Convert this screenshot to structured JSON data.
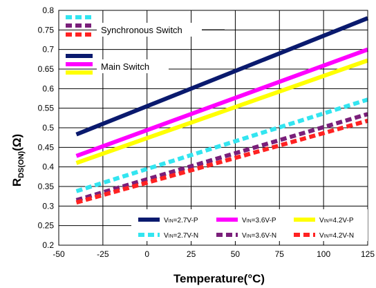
{
  "chart_data": {
    "type": "line",
    "xlabel": "Temperature(°C)",
    "ylabel_main": "R",
    "ylabel_sub": "DS(ON)",
    "ylabel_unit": "(Ω)",
    "xlim": [
      -50,
      125
    ],
    "ylim": [
      0.2,
      0.8
    ],
    "xticks": [
      "-50",
      "-25",
      "0",
      "25",
      "50",
      "75",
      "100",
      "125"
    ],
    "yticks": [
      "0.2",
      "0.25",
      "0.3",
      "0.35",
      "0.4",
      "0.45",
      "0.5",
      "0.55",
      "0.6",
      "0.65",
      "0.7",
      "0.75",
      "0.8"
    ],
    "grid": true,
    "series": [
      {
        "name": "VIN=2.7V-P",
        "label_main": "V",
        "label_sub": "IN",
        "label_rest": "=2.7V-P",
        "color": "#0a1a6e",
        "dashed": false,
        "x": [
          -40,
          125
        ],
        "y": [
          0.483,
          0.78
        ]
      },
      {
        "name": "VIN=3.6V-P",
        "label_main": "V",
        "label_sub": "IN",
        "label_rest": "=3.6V-P",
        "color": "#ff00ff",
        "dashed": false,
        "x": [
          -40,
          125
        ],
        "y": [
          0.428,
          0.7
        ]
      },
      {
        "name": "VIN=4.2V-P",
        "label_main": "V",
        "label_sub": "IN",
        "label_rest": "=4.2V-P",
        "color": "#ffff00",
        "dashed": false,
        "x": [
          -40,
          125
        ],
        "y": [
          0.41,
          0.672
        ]
      },
      {
        "name": "VIN=2.7V-N",
        "label_main": "V",
        "label_sub": "IN",
        "label_rest": "=2.7V-N",
        "color": "#33e5f0",
        "dashed": true,
        "x": [
          -40,
          125
        ],
        "y": [
          0.338,
          0.572
        ]
      },
      {
        "name": "VIN=3.6V-N",
        "label_main": "V",
        "label_sub": "IN",
        "label_rest": "=3.6V-N",
        "color": "#7a1f7a",
        "dashed": true,
        "x": [
          -40,
          125
        ],
        "y": [
          0.315,
          0.535
        ]
      },
      {
        "name": "VIN=4.2V-N",
        "label_main": "V",
        "label_sub": "IN",
        "label_rest": "=4.2V-N",
        "color": "#ff2222",
        "dashed": true,
        "x": [
          -40,
          125
        ],
        "y": [
          0.309,
          0.518
        ]
      }
    ],
    "group_labels": {
      "synchronous": "Synchronous Switch",
      "main": "Main Switch"
    }
  }
}
